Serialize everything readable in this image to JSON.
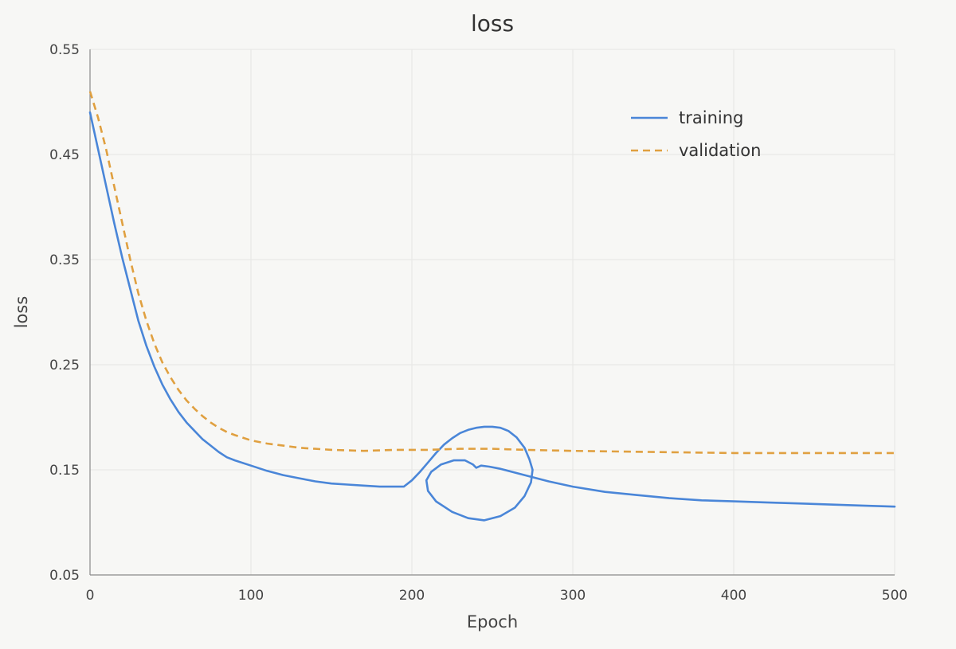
{
  "chart_data": {
    "type": "line",
    "title": "loss",
    "xlabel": "Epoch",
    "ylabel": "loss",
    "xlim": [
      0,
      500
    ],
    "ylim": [
      0.05,
      0.55
    ],
    "xticks": [
      0,
      100,
      200,
      300,
      400,
      500
    ],
    "yticks": [
      0.05,
      0.15,
      0.25,
      0.35,
      0.45,
      0.55
    ],
    "xtick_labels": [
      "0",
      "100",
      "200",
      "300",
      "400",
      "500"
    ],
    "ytick_labels": [
      "0.05",
      "0.15",
      "0.25",
      "0.35",
      "0.45",
      "0.55"
    ],
    "grid": true,
    "legend_position": "top-right",
    "series": [
      {
        "name": "training",
        "color": "#4a86d8",
        "style": "solid",
        "points": [
          [
            0,
            0.49
          ],
          [
            5,
            0.455
          ],
          [
            10,
            0.42
          ],
          [
            15,
            0.385
          ],
          [
            20,
            0.352
          ],
          [
            25,
            0.322
          ],
          [
            30,
            0.292
          ],
          [
            35,
            0.268
          ],
          [
            40,
            0.248
          ],
          [
            45,
            0.231
          ],
          [
            50,
            0.217
          ],
          [
            55,
            0.205
          ],
          [
            60,
            0.195
          ],
          [
            65,
            0.187
          ],
          [
            70,
            0.179
          ],
          [
            75,
            0.173
          ],
          [
            80,
            0.167
          ],
          [
            85,
            0.162
          ],
          [
            90,
            0.159
          ],
          [
            100,
            0.154
          ],
          [
            110,
            0.149
          ],
          [
            120,
            0.145
          ],
          [
            130,
            0.142
          ],
          [
            140,
            0.139
          ],
          [
            150,
            0.137
          ],
          [
            160,
            0.136
          ],
          [
            170,
            0.135
          ],
          [
            180,
            0.134
          ],
          [
            190,
            0.134
          ],
          [
            195,
            0.134
          ],
          [
            200,
            0.14
          ],
          [
            205,
            0.148
          ],
          [
            210,
            0.157
          ],
          [
            215,
            0.166
          ],
          [
            220,
            0.174
          ],
          [
            225,
            0.18
          ],
          [
            230,
            0.185
          ],
          [
            235,
            0.188
          ],
          [
            240,
            0.19
          ],
          [
            245,
            0.191
          ],
          [
            250,
            0.191
          ],
          [
            255,
            0.19
          ],
          [
            260,
            0.187
          ],
          [
            265,
            0.181
          ],
          [
            270,
            0.171
          ],
          [
            273,
            0.16
          ],
          [
            275,
            0.15
          ],
          [
            274,
            0.138
          ],
          [
            270,
            0.125
          ],
          [
            264,
            0.114
          ],
          [
            255,
            0.106
          ],
          [
            245,
            0.102
          ],
          [
            235,
            0.104
          ],
          [
            225,
            0.11
          ],
          [
            215,
            0.12
          ],
          [
            210,
            0.13
          ],
          [
            209,
            0.14
          ],
          [
            212,
            0.148
          ],
          [
            218,
            0.155
          ],
          [
            226,
            0.159
          ],
          [
            233,
            0.159
          ],
          [
            238,
            0.155
          ],
          [
            240,
            0.152
          ],
          [
            243,
            0.154
          ],
          [
            248,
            0.153
          ],
          [
            255,
            0.151
          ],
          [
            265,
            0.147
          ],
          [
            275,
            0.143
          ],
          [
            285,
            0.139
          ],
          [
            300,
            0.134
          ],
          [
            320,
            0.129
          ],
          [
            340,
            0.126
          ],
          [
            360,
            0.123
          ],
          [
            380,
            0.121
          ],
          [
            400,
            0.12
          ],
          [
            420,
            0.119
          ],
          [
            440,
            0.118
          ],
          [
            460,
            0.117
          ],
          [
            480,
            0.116
          ],
          [
            500,
            0.115
          ]
        ]
      },
      {
        "name": "validation",
        "color": "#e0a040",
        "style": "dashed",
        "points": [
          [
            0,
            0.51
          ],
          [
            5,
            0.485
          ],
          [
            10,
            0.455
          ],
          [
            15,
            0.42
          ],
          [
            20,
            0.385
          ],
          [
            25,
            0.35
          ],
          [
            30,
            0.318
          ],
          [
            35,
            0.292
          ],
          [
            40,
            0.27
          ],
          [
            45,
            0.252
          ],
          [
            50,
            0.238
          ],
          [
            55,
            0.226
          ],
          [
            60,
            0.216
          ],
          [
            65,
            0.208
          ],
          [
            70,
            0.201
          ],
          [
            75,
            0.195
          ],
          [
            80,
            0.19
          ],
          [
            85,
            0.186
          ],
          [
            90,
            0.183
          ],
          [
            100,
            0.178
          ],
          [
            110,
            0.175
          ],
          [
            120,
            0.173
          ],
          [
            130,
            0.171
          ],
          [
            140,
            0.17
          ],
          [
            150,
            0.169
          ],
          [
            170,
            0.168
          ],
          [
            190,
            0.169
          ],
          [
            210,
            0.169
          ],
          [
            230,
            0.17
          ],
          [
            250,
            0.17
          ],
          [
            270,
            0.169
          ],
          [
            300,
            0.168
          ],
          [
            350,
            0.167
          ],
          [
            400,
            0.166
          ],
          [
            450,
            0.166
          ],
          [
            500,
            0.166
          ]
        ]
      }
    ]
  }
}
